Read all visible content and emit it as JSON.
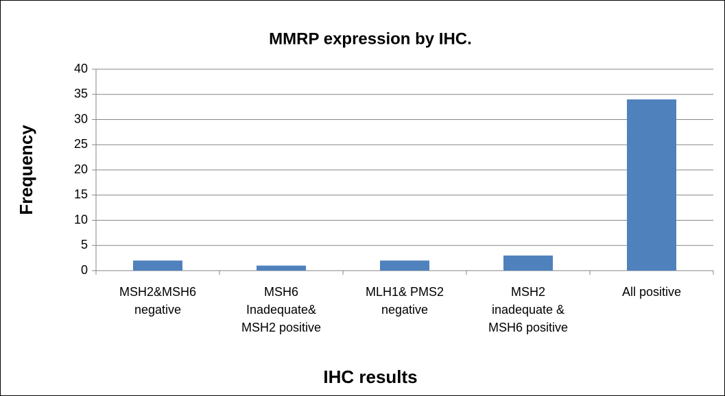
{
  "chart_data": {
    "type": "bar",
    "title": "MMRP expression by IHC.",
    "x_label": "IHC results",
    "y_label": "Frequency",
    "categories": [
      "MSH2&MSH6 negative",
      "MSH6 Inadequate& MSH2 positive",
      "MLH1& PMS2 negative",
      "MSH2 inadequate & MSH6 positive",
      "All positive"
    ],
    "values": [
      2,
      1,
      2,
      3,
      34
    ],
    "color": "#4f81bd",
    "ylim": [
      0,
      40
    ],
    "yticks": [
      0,
      5,
      10,
      15,
      20,
      25,
      30,
      35,
      40
    ],
    "grid": true
  }
}
